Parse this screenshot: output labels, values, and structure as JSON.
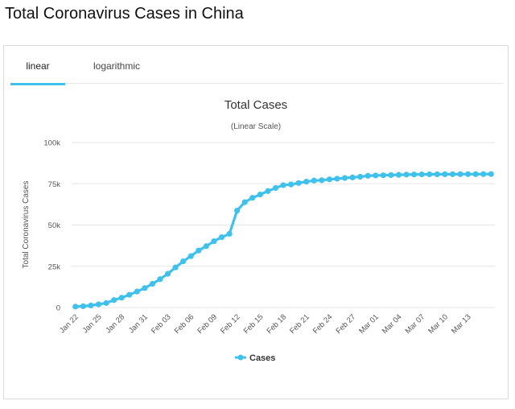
{
  "page": {
    "title": "Total Coronavirus Cases in China"
  },
  "tabs": [
    {
      "label": "linear",
      "active": true
    },
    {
      "label": "logarithmic",
      "active": false
    }
  ],
  "colors": {
    "series": "#3fc1ec",
    "grid": "#e6e6e6",
    "tab_active": "#3fc1ec"
  },
  "chart_data": {
    "type": "line",
    "title": "Total Cases",
    "subtitle": "(Linear Scale)",
    "ylabel": "Total Coronavirus Cases",
    "xlabel": "",
    "ylim": [
      0,
      100000
    ],
    "y_ticks": [
      0,
      25000,
      50000,
      75000,
      100000
    ],
    "y_tick_labels": [
      "0",
      "25k",
      "50k",
      "75k",
      "100k"
    ],
    "x_tick_labels": [
      "Jan 22",
      "Jan 25",
      "Jan 28",
      "Jan 31",
      "Feb 03",
      "Feb 06",
      "Feb 09",
      "Feb 12",
      "Feb 15",
      "Feb 18",
      "Feb 21",
      "Feb 24",
      "Feb 27",
      "Mar 01",
      "Mar 04",
      "Mar 07",
      "Mar 10",
      "Mar 13"
    ],
    "x": [
      "Jan 22",
      "Jan 23",
      "Jan 24",
      "Jan 25",
      "Jan 26",
      "Jan 27",
      "Jan 28",
      "Jan 29",
      "Jan 30",
      "Jan 31",
      "Feb 01",
      "Feb 02",
      "Feb 03",
      "Feb 04",
      "Feb 05",
      "Feb 06",
      "Feb 07",
      "Feb 08",
      "Feb 09",
      "Feb 10",
      "Feb 11",
      "Feb 12",
      "Feb 13",
      "Feb 14",
      "Feb 15",
      "Feb 16",
      "Feb 17",
      "Feb 18",
      "Feb 19",
      "Feb 20",
      "Feb 21",
      "Feb 22",
      "Feb 23",
      "Feb 24",
      "Feb 25",
      "Feb 26",
      "Feb 27",
      "Feb 28",
      "Feb 29",
      "Mar 01",
      "Mar 02",
      "Mar 03",
      "Mar 04",
      "Mar 05",
      "Mar 06",
      "Mar 07",
      "Mar 08",
      "Mar 09",
      "Mar 10",
      "Mar 11",
      "Mar 12",
      "Mar 13",
      "Mar 14",
      "Mar 15",
      "Mar 16"
    ],
    "series": [
      {
        "name": "Cases",
        "values": [
          571,
          830,
          1287,
          1975,
          2744,
          4515,
          5974,
          7711,
          9692,
          11791,
          14380,
          17205,
          20438,
          24324,
          28018,
          31161,
          34546,
          37198,
          40171,
          42638,
          44653,
          58761,
          63851,
          66492,
          68500,
          70548,
          72436,
          74185,
          74576,
          75465,
          76288,
          76936,
          77150,
          77658,
          78064,
          78497,
          78824,
          79251,
          79824,
          80026,
          80151,
          80270,
          80409,
          80552,
          80651,
          80695,
          80735,
          80754,
          80778,
          80793,
          80813,
          80824,
          80844,
          80860,
          80881
        ]
      }
    ],
    "legend": "bottom-center",
    "grid": true
  }
}
